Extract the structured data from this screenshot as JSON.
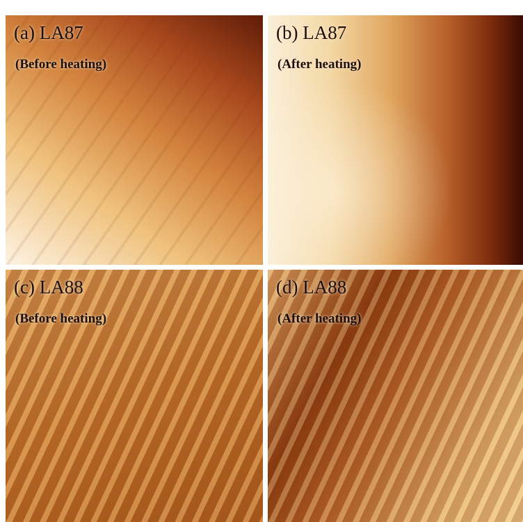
{
  "panels": [
    {
      "label": "(a) LA87",
      "caption": "(Before heating)"
    },
    {
      "label": "(b) LA87",
      "caption": "(After heating)"
    },
    {
      "label": "(c) LA88",
      "caption": "(Before heating)"
    },
    {
      "label": "(d) LA88",
      "caption": "(After heating)"
    }
  ]
}
